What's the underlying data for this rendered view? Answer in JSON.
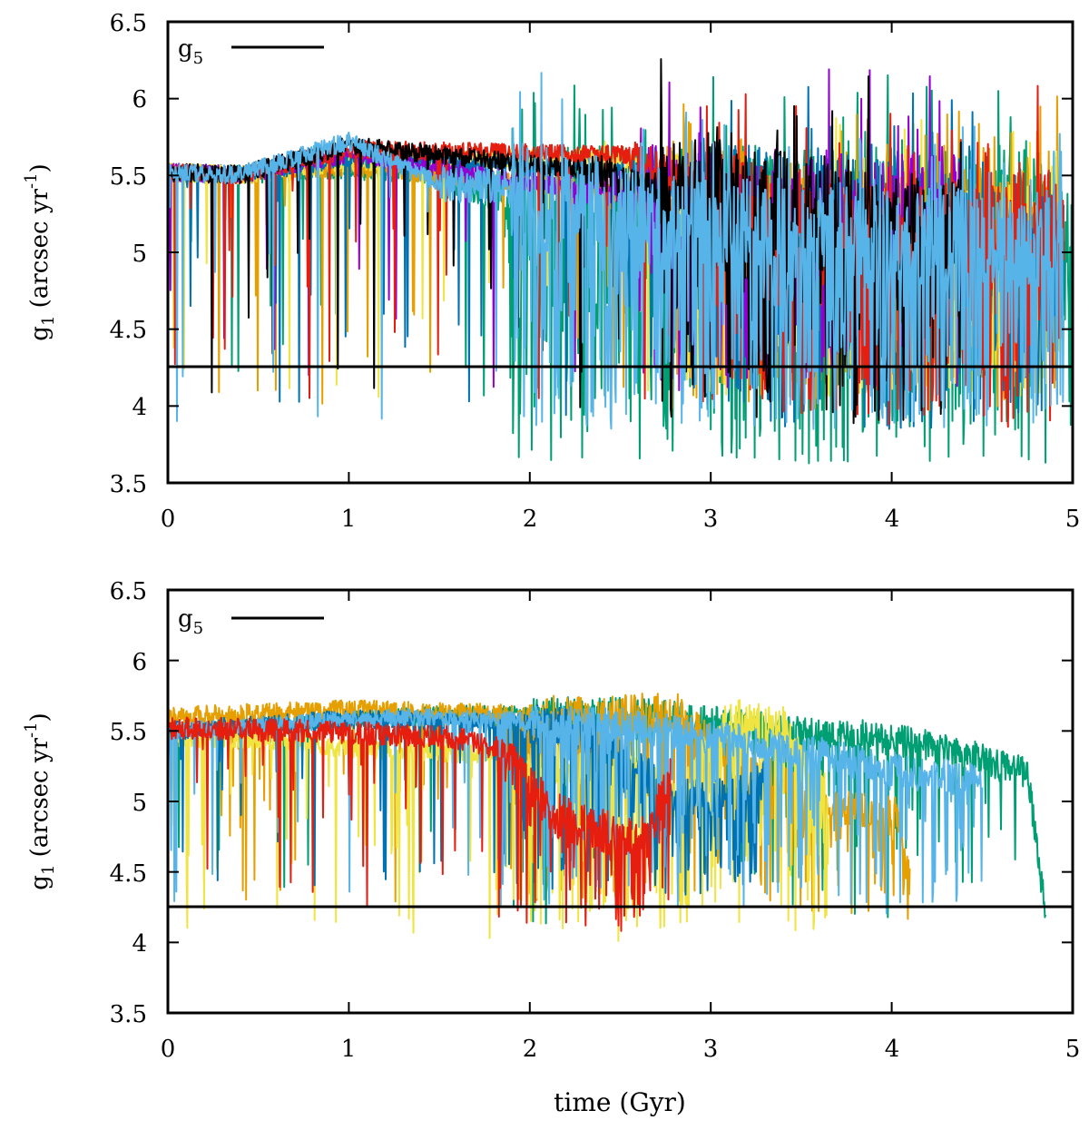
{
  "chart_data": [
    {
      "type": "line",
      "panel": "top",
      "title": "",
      "xlabel": "",
      "ylabel_main": "g",
      "ylabel_sub": "1",
      "ylabel_unit": " (arcsec yr",
      "ylabel_exp": "-1",
      "ylabel_close": ")",
      "xlim": [
        0,
        5
      ],
      "ylim": [
        3.5,
        6.5
      ],
      "xticks": [
        "0",
        "1",
        "2",
        "3",
        "4",
        "5"
      ],
      "yticks": [
        "3.5",
        "4",
        "4.5",
        "5",
        "5.5",
        "6",
        "6.5"
      ],
      "legend": {
        "main": "g",
        "sub": "5",
        "placement": "top-left"
      },
      "reference_line": {
        "label": "g5",
        "value": 4.26
      },
      "series": [
        {
          "color": "#009e73",
          "seed": 11,
          "end": 5.0,
          "breakdown": 1.85,
          "floor": 3.62
        },
        {
          "color": "#e69f00",
          "seed": 12,
          "end": 4.95,
          "breakdown": 2.75,
          "floor": 3.95
        },
        {
          "color": "#f0e442",
          "seed": 13,
          "end": 4.95,
          "breakdown": 2.8,
          "floor": 4.05
        },
        {
          "color": "#0072b2",
          "seed": 14,
          "end": 4.95,
          "breakdown": 2.9,
          "floor": 3.85
        },
        {
          "color": "#9400d3",
          "seed": 15,
          "end": 4.4,
          "breakdown": 2.6,
          "floor": 4.1
        },
        {
          "color": "#e51e10",
          "seed": 16,
          "end": 4.95,
          "breakdown": 2.95,
          "floor": 3.85
        },
        {
          "color": "#000000",
          "seed": 17,
          "end": 4.4,
          "breakdown": 2.7,
          "floor": 3.88
        },
        {
          "color": "#56b4e9",
          "seed": 18,
          "end": 4.95,
          "breakdown": 1.9,
          "floor": 3.85
        }
      ]
    },
    {
      "type": "line",
      "panel": "bottom",
      "title": "",
      "xlabel": "time (Gyr)",
      "ylabel_main": "g",
      "ylabel_sub": "1",
      "ylabel_unit": " (arcsec yr",
      "ylabel_exp": "-1",
      "ylabel_close": ")",
      "xlim": [
        0,
        5
      ],
      "ylim": [
        3.5,
        6.5
      ],
      "xticks": [
        "0",
        "1",
        "2",
        "3",
        "4",
        "5"
      ],
      "yticks": [
        "3.5",
        "4",
        "4.5",
        "5",
        "5.5",
        "6",
        "6.5"
      ],
      "legend": {
        "main": "g",
        "sub": "5",
        "placement": "top-left"
      },
      "reference_line": {
        "label": "g5",
        "value": 4.26
      },
      "series": [
        {
          "color": "#009e73",
          "seed": 21,
          "end": 4.85,
          "profile": [
            [
              0,
              5.5
            ],
            [
              1.5,
              5.62
            ],
            [
              2.6,
              5.62
            ],
            [
              3.5,
              5.48
            ],
            [
              4.0,
              5.45
            ],
            [
              4.5,
              5.3
            ],
            [
              4.75,
              5.2
            ],
            [
              4.85,
              4.2
            ]
          ],
          "amp": 0.06,
          "dip": 0.1,
          "dipBase": 0.015,
          "floor": 3.98
        },
        {
          "color": "#e69f00",
          "seed": 22,
          "end": 4.1,
          "profile": [
            [
              0,
              5.6
            ],
            [
              1,
              5.65
            ],
            [
              2.4,
              5.6
            ],
            [
              2.8,
              5.65
            ],
            [
              3.0,
              5.4
            ],
            [
              3.3,
              5.2
            ],
            [
              3.6,
              5.0
            ],
            [
              4.05,
              4.9
            ],
            [
              4.1,
              4.4
            ]
          ],
          "amp": 0.07,
          "dip": 0.28,
          "dipBase": 0.06,
          "floor": 4.12
        },
        {
          "color": "#f0e442",
          "seed": 23,
          "end": 3.65,
          "profile": [
            [
              0,
              5.45
            ],
            [
              0.5,
              5.45
            ],
            [
              1,
              5.38
            ],
            [
              1.8,
              5.33
            ],
            [
              2.2,
              5.25
            ],
            [
              2.6,
              5.3
            ],
            [
              2.8,
              5.0
            ],
            [
              3.1,
              5.6
            ],
            [
              3.4,
              5.55
            ],
            [
              3.6,
              5.1
            ]
          ],
          "amp": 0.07,
          "dip": 0.35,
          "dipBase": 0.06,
          "floor": 3.86
        },
        {
          "color": "#0072b2",
          "seed": 24,
          "end": 3.3,
          "profile": [
            [
              0,
              5.5
            ],
            [
              1,
              5.58
            ],
            [
              2,
              5.55
            ],
            [
              2.35,
              5.5
            ],
            [
              2.55,
              5.3
            ],
            [
              2.75,
              5.05
            ],
            [
              3.0,
              5.0
            ],
            [
              3.3,
              5.15
            ]
          ],
          "amp": 0.07,
          "dip": 0.3,
          "dipBase": 0.05,
          "floor": 4.24
        },
        {
          "color": "#56b4e9",
          "seed": 25,
          "end": 4.5,
          "profile": [
            [
              0,
              5.5
            ],
            [
              1.3,
              5.6
            ],
            [
              2.5,
              5.55
            ],
            [
              3.3,
              5.4
            ],
            [
              3.8,
              5.3
            ],
            [
              4.1,
              5.2
            ],
            [
              4.5,
              5.15
            ]
          ],
          "amp": 0.06,
          "dip": 0.2,
          "dipBase": 0.04,
          "floor": 4.09
        },
        {
          "color": "#e51e10",
          "seed": 26,
          "end": 2.78,
          "profile": [
            [
              0,
              5.52
            ],
            [
              0.8,
              5.5
            ],
            [
              1.6,
              5.45
            ],
            [
              1.9,
              5.35
            ],
            [
              2.05,
              5.05
            ],
            [
              2.15,
              4.9
            ],
            [
              2.5,
              4.75
            ],
            [
              2.65,
              4.75
            ],
            [
              2.78,
              5.2
            ]
          ],
          "amp": 0.08,
          "dip": 0.25,
          "dipBase": 0.05,
          "floor": 4.02
        }
      ]
    }
  ]
}
